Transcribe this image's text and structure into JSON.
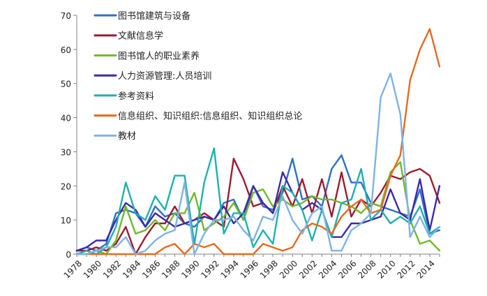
{
  "chart_data": {
    "type": "line",
    "x": [
      1978,
      1979,
      1980,
      1981,
      1982,
      1983,
      1984,
      1985,
      1986,
      1987,
      1988,
      1989,
      1990,
      1991,
      1992,
      1993,
      1994,
      1995,
      1996,
      1997,
      1998,
      1999,
      2000,
      2001,
      2002,
      2003,
      2004,
      2005,
      2006,
      2007,
      2008,
      2009,
      2010,
      2011,
      2012,
      2013,
      2014,
      2015
    ],
    "x_ticks": [
      1978,
      1980,
      1982,
      1984,
      1986,
      1988,
      1990,
      1992,
      1994,
      1996,
      1998,
      2000,
      2002,
      2004,
      2006,
      2008,
      2010,
      2012,
      2014
    ],
    "ylim": [
      0,
      70
    ],
    "y_ticks": [
      0,
      10,
      20,
      30,
      40,
      50,
      60,
      70
    ],
    "grid": false,
    "legend_position": "top-left",
    "series": [
      {
        "name": "图书馆建筑与设备",
        "color": "#2f6fc6",
        "values": [
          1,
          2,
          1,
          3,
          12,
          13,
          12,
          8,
          14,
          11,
          12,
          9,
          8,
          11,
          10,
          15,
          16,
          10,
          20,
          14,
          13,
          18,
          28,
          16,
          17,
          14,
          25,
          29,
          21,
          21,
          15,
          14,
          13,
          12,
          11,
          19,
          6,
          7
        ]
      },
      {
        "name": "文献信息学",
        "color": "#9b1b30",
        "values": [
          1,
          1,
          2,
          1,
          3,
          8,
          0,
          5,
          9,
          9,
          14,
          9,
          10,
          12,
          10,
          8,
          28,
          22,
          14,
          15,
          12,
          20,
          14,
          22,
          12,
          22,
          11,
          24,
          11,
          16,
          14,
          18,
          23,
          22,
          24,
          25,
          23,
          15
        ]
      },
      {
        "name": "图书馆人的职业素养",
        "color": "#72b82a",
        "values": [
          0,
          0,
          1,
          0,
          4,
          14,
          6,
          7,
          10,
          7,
          12,
          12,
          18,
          7,
          9,
          11,
          15,
          10,
          18,
          19,
          14,
          16,
          14,
          15,
          17,
          16,
          16,
          15,
          14,
          12,
          15,
          14,
          24,
          27,
          10,
          3,
          4,
          1
        ]
      },
      {
        "name": "人力资源管理:人员培训",
        "color": "#3a2aa8",
        "values": [
          1,
          2,
          4,
          4,
          10,
          15,
          13,
          8,
          12,
          10,
          8,
          9,
          10,
          11,
          10,
          14,
          9,
          12,
          20,
          15,
          12,
          24,
          18,
          13,
          15,
          13,
          5,
          5,
          9,
          9,
          10,
          11,
          19,
          12,
          10,
          22,
          7,
          20
        ]
      },
      {
        "name": "参考资料",
        "color": "#1fb0ae",
        "values": [
          0,
          1,
          0,
          2,
          8,
          21,
          12,
          10,
          17,
          13,
          23,
          23,
          3,
          21,
          31,
          6,
          12,
          12,
          2,
          7,
          3,
          20,
          18,
          13,
          4,
          13,
          5,
          15,
          16,
          25,
          10,
          13,
          9,
          11,
          9,
          14,
          6,
          8
        ]
      },
      {
        "name": "信息组织、知识组织:信息组织、知识组织总论",
        "color": "#e66a1f",
        "values": [
          0,
          0,
          0,
          0,
          0,
          0,
          0,
          0,
          0,
          2,
          3,
          0,
          3,
          2,
          3,
          0,
          0,
          0,
          0,
          3,
          2,
          1,
          2,
          7,
          9,
          8,
          6,
          11,
          14,
          16,
          12,
          13,
          23,
          29,
          51,
          60,
          66,
          55
        ]
      },
      {
        "name": "教材",
        "color": "#7fb2e6",
        "values": [
          0,
          0,
          1,
          2,
          2,
          5,
          0,
          1,
          4,
          6,
          7,
          21,
          0,
          6,
          10,
          10,
          11,
          7,
          4,
          11,
          10,
          17,
          10,
          6,
          12,
          14,
          1,
          1,
          7,
          9,
          12,
          46,
          53,
          41,
          5,
          11,
          5,
          8
        ]
      }
    ]
  }
}
